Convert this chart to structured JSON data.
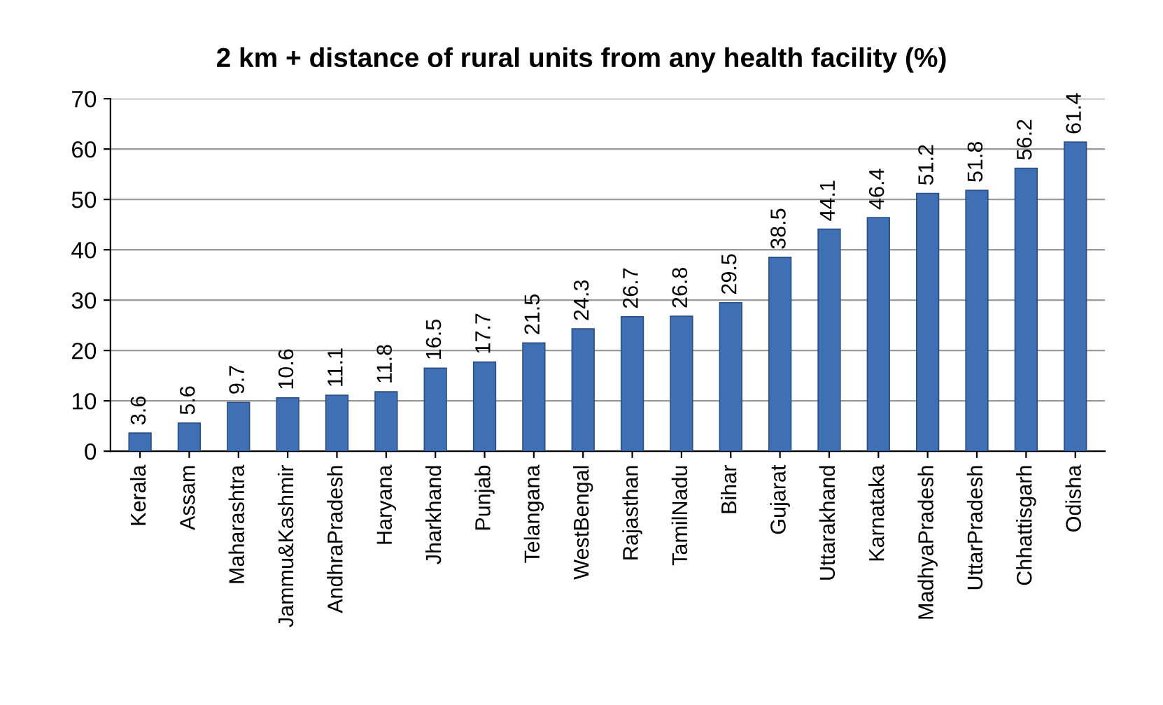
{
  "chart_data": {
    "type": "bar",
    "title": "2 km + distance of rural units from any health facility (%)",
    "categories": [
      "Kerala",
      "Assam",
      "Maharashtra",
      "Jammu&Kashmir",
      "AndhraPradesh",
      "Haryana",
      "Jharkhand",
      "Punjab",
      "Telangana",
      "WestBengal",
      "Rajasthan",
      "TamilNadu",
      "Bihar",
      "Gujarat",
      "Uttarakhand",
      "Karnataka",
      "MadhyaPradesh",
      "UttarPradesh",
      "Chhattisgarh",
      "Odisha"
    ],
    "values": [
      3.6,
      5.6,
      9.7,
      10.6,
      11.1,
      11.8,
      16.5,
      17.7,
      21.5,
      24.3,
      26.7,
      26.8,
      29.5,
      38.5,
      44.1,
      46.4,
      51.2,
      51.8,
      56.2,
      61.4
    ],
    "color": "#3f6fb5",
    "ylim": [
      0,
      70
    ],
    "yticks": [
      0,
      10,
      20,
      30,
      40,
      50,
      60,
      70
    ],
    "grid": "y",
    "data_labels": true,
    "legend": false
  }
}
